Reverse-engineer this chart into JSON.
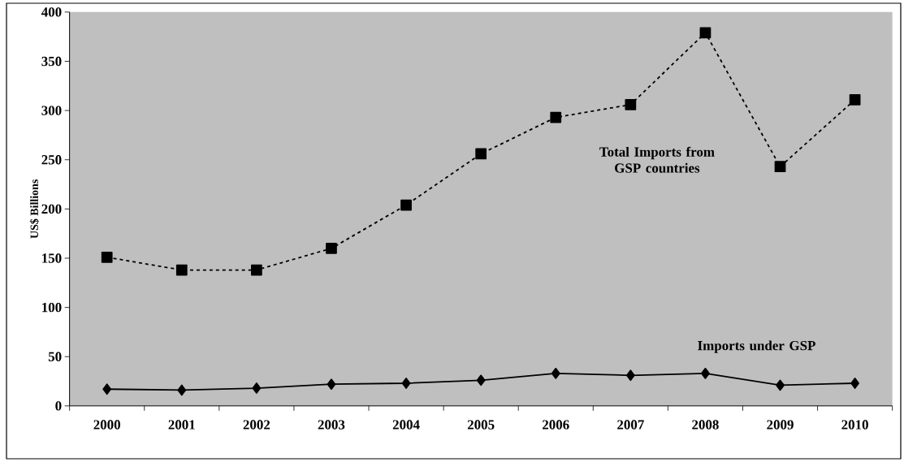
{
  "chart_data": {
    "type": "line",
    "ylabel": "US$ Billions",
    "categories": [
      "2000",
      "2001",
      "2002",
      "2003",
      "2004",
      "2005",
      "2006",
      "2007",
      "2008",
      "2009",
      "2010"
    ],
    "series": [
      {
        "name": "Total Imports from GSP countries",
        "color": "#000000",
        "marker": "square",
        "line_style": "dashed",
        "values": [
          151,
          138,
          138,
          160,
          204,
          256,
          293,
          306,
          379,
          243,
          311
        ]
      },
      {
        "name": "Imports under GSP",
        "color": "#000000",
        "marker": "diamond",
        "line_style": "solid",
        "values": [
          17,
          16,
          18,
          22,
          23,
          26,
          33,
          31,
          33,
          21,
          23
        ]
      }
    ],
    "ylim": [
      0,
      400
    ],
    "yticks": [
      0,
      50,
      100,
      150,
      200,
      250,
      300,
      350,
      400
    ],
    "grid": false
  }
}
